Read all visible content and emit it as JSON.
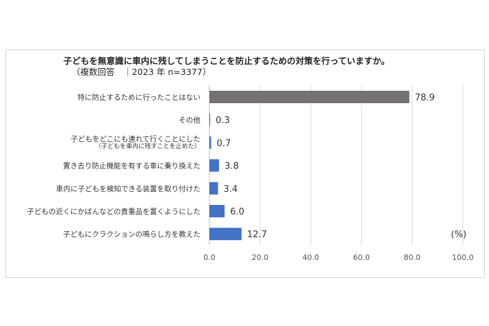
{
  "chart_data": {
    "type": "bar",
    "orientation": "horizontal",
    "title": "子どもを無意識に車内に残してしまうことを防止するための対策を行っていますか。",
    "subtitle": "（複数回答　｜2023 年 n=3377）",
    "unit_label": "(%)",
    "xlim": [
      0,
      100
    ],
    "x_ticks": [
      "0.0",
      "20.0",
      "40.0",
      "60.0",
      "80.0",
      "100.0"
    ],
    "grid": "vertical",
    "categories": [
      "特に防止するために行ったことはない",
      "その他",
      "子どもをどこにも連れて行くことにした",
      "置き去り防止機能を有する車に乗り換えた",
      "車内に子どもを検知できる装置を取り付けた",
      "子どもの近くにかばんなどの貴重品を置くようにした",
      "子どもにクラクションの鳴らし方を教えた"
    ],
    "category_notes": [
      "",
      "",
      "（子どもを車内に残すことを止めた）",
      "",
      "",
      "",
      ""
    ],
    "values": [
      78.9,
      0.3,
      0.7,
      3.8,
      3.4,
      6.0,
      12.7
    ],
    "value_labels": [
      "78.9",
      "0.3",
      "0.7",
      "3.8",
      "3.4",
      "6.0",
      "12.7"
    ],
    "colors": [
      "#767171",
      "#4472c4",
      "#4472c4",
      "#4472c4",
      "#4472c4",
      "#4472c4",
      "#4472c4"
    ]
  }
}
